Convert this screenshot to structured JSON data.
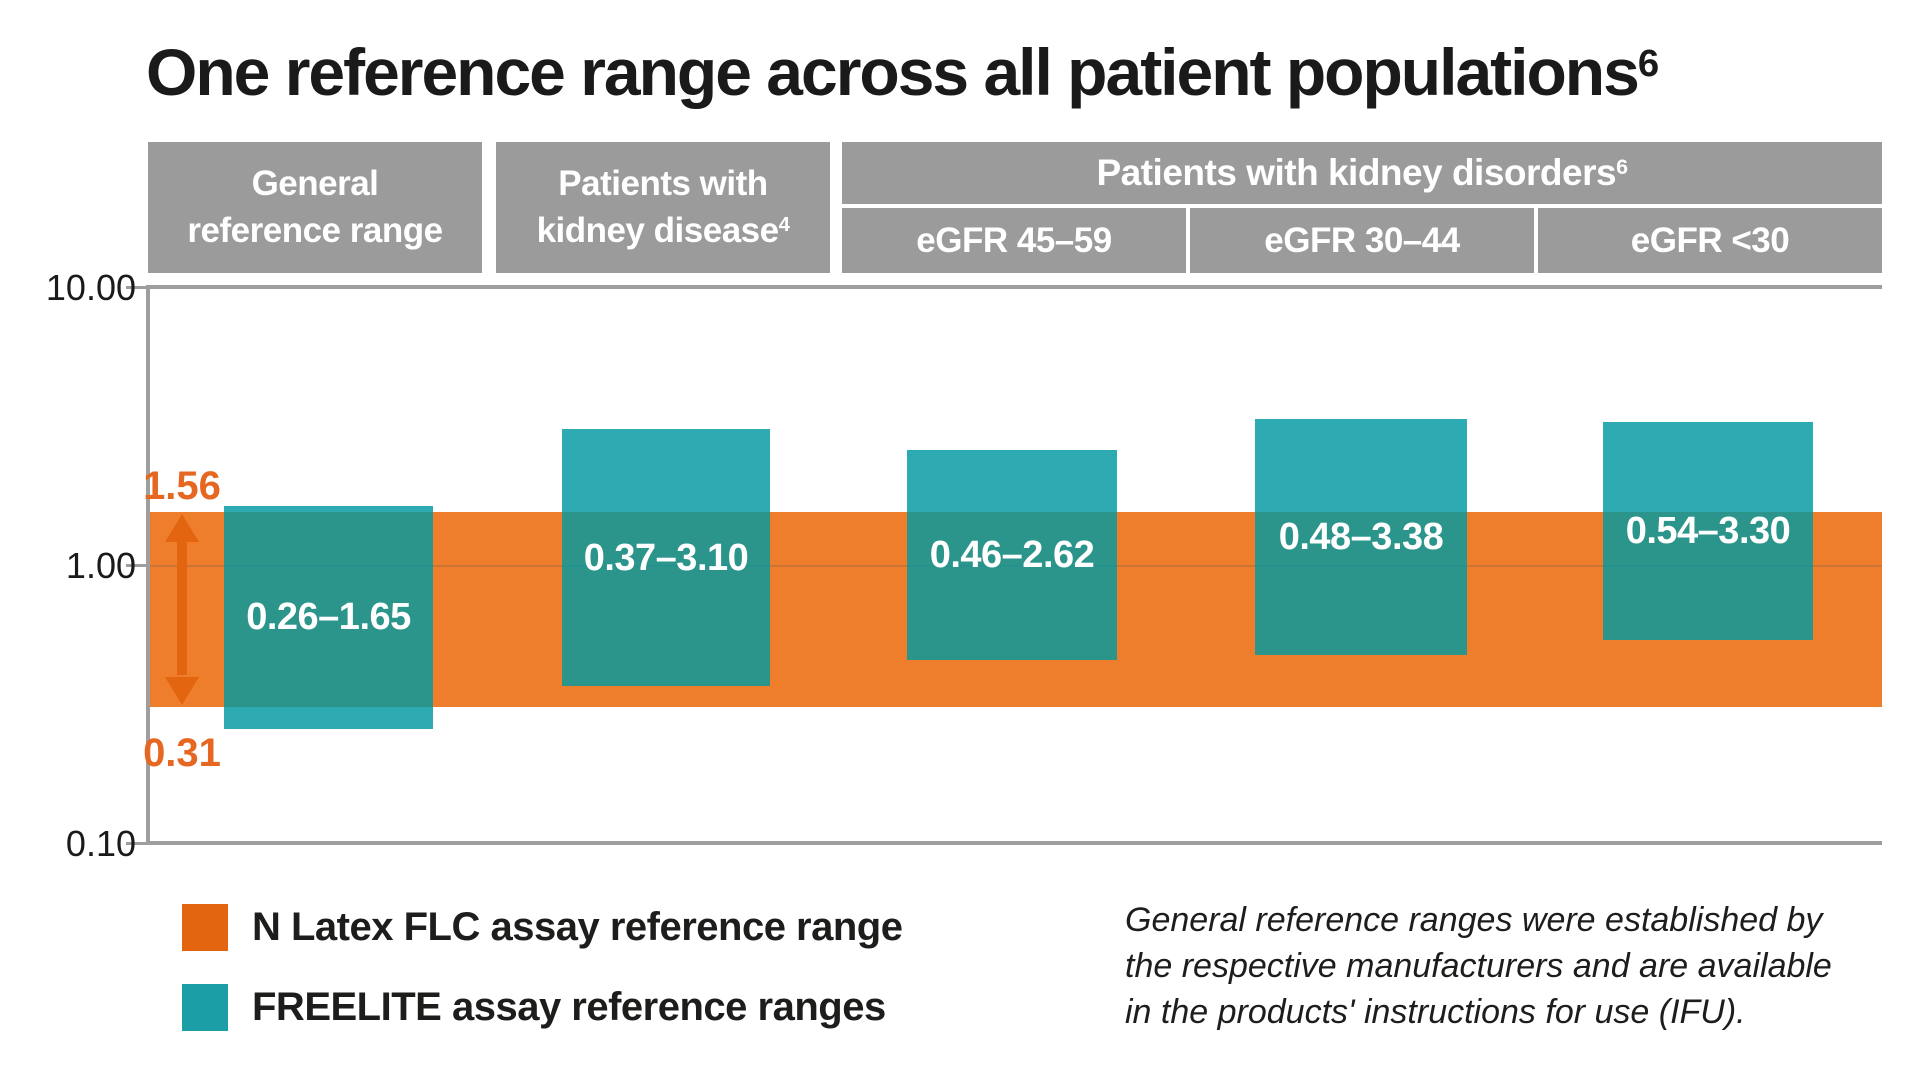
{
  "title": {
    "text": "One reference range across all patient populations",
    "sup": "6"
  },
  "header": {
    "col1": {
      "line1": "General",
      "line2": "reference range"
    },
    "col2": {
      "line1": "Patients with",
      "line2": "kidney disease",
      "sup": "4"
    },
    "group": {
      "text": "Patients with kidney disorders",
      "sup": "6"
    },
    "subcols": [
      "eGFR 45–59",
      "eGFR 30–44",
      "eGFR <30"
    ]
  },
  "chart_data": {
    "type": "bar",
    "title": "One reference range across all patient populations",
    "y_axis": {
      "scale": "log",
      "ylim": [
        0.1,
        10
      ],
      "tick_values": [
        10,
        1,
        0.1
      ],
      "ticks": [
        "10.00",
        "1.00",
        "0.10"
      ],
      "grid_at": [
        1
      ]
    },
    "categories": [
      "General reference range",
      "Patients with kidney disease",
      "eGFR 45–59",
      "eGFR 30–44",
      "eGFR <30"
    ],
    "freelite_ranges": [
      {
        "low": 0.26,
        "high": 1.65,
        "label": "0.26–1.65"
      },
      {
        "low": 0.37,
        "high": 3.1,
        "label": "0.37–3.10"
      },
      {
        "low": 0.46,
        "high": 2.62,
        "label": "0.46–2.62"
      },
      {
        "low": 0.48,
        "high": 3.38,
        "label": "0.48–3.38"
      },
      {
        "low": 0.54,
        "high": 3.3,
        "label": "0.54–3.30"
      }
    ],
    "n_latex_range": {
      "low": 0.31,
      "high": 1.56,
      "low_label": "0.31",
      "high_label": "1.56"
    }
  },
  "legend": [
    {
      "label": "N Latex FLC assay reference range",
      "color": "#e4650f"
    },
    {
      "label": "FREELITE assay reference ranges",
      "color": "#1b9ea6"
    }
  ],
  "footnote": {
    "lines": [
      "General reference ranges were established by",
      "the respective manufacturers and are available",
      "in the products' instructions for use (IFU)."
    ]
  },
  "colors": {
    "band_orange": "#ee7e2b",
    "accent_orange": "#e4650f",
    "orange_text": "#e66721",
    "bar_teal": "rgba(0,152,161,0.82)",
    "header_gray": "#9b9b9b",
    "axis_gray": "#9e9e9e"
  }
}
